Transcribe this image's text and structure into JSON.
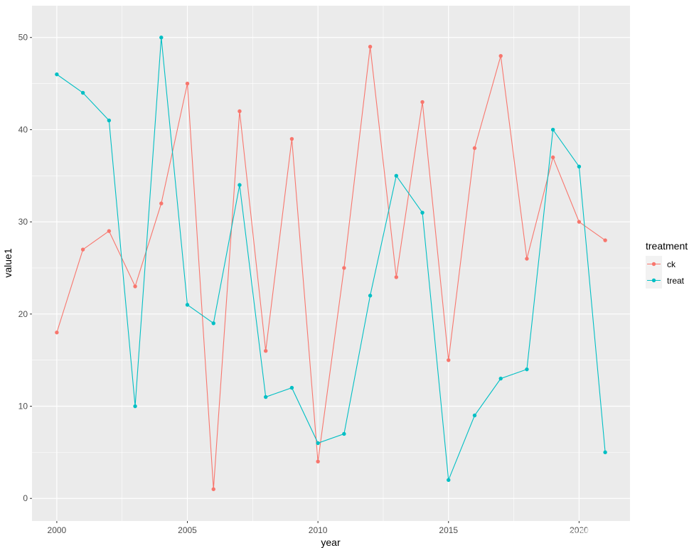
{
  "chart_data": {
    "type": "line",
    "xlabel": "year",
    "ylabel": "value1",
    "x": [
      2000,
      2001,
      2002,
      2003,
      2004,
      2005,
      2006,
      2007,
      2008,
      2009,
      2010,
      2011,
      2012,
      2013,
      2014,
      2015,
      2016,
      2017,
      2018,
      2019,
      2020,
      2021
    ],
    "xlim": [
      1999.05,
      2021.95
    ],
    "ylim": [
      -2.45,
      53.45
    ],
    "x_major_ticks": [
      2000,
      2005,
      2010,
      2015,
      2020
    ],
    "x_tick_labels": [
      "2000",
      "2005",
      "2010",
      "2015",
      "2020"
    ],
    "x_minor_ticks": [
      2002.5,
      2007.5,
      2012.5,
      2017.5
    ],
    "y_major_ticks": [
      0,
      10,
      20,
      30,
      40,
      50
    ],
    "y_tick_labels": [
      "0",
      "10",
      "20",
      "30",
      "40",
      "50"
    ],
    "y_minor_ticks": [
      5,
      15,
      25,
      35,
      45
    ],
    "grid": true,
    "legend": {
      "title": "treatment",
      "position": "right"
    },
    "series": [
      {
        "name": "ck",
        "color": "#F8766D",
        "values": [
          18,
          27,
          29,
          23,
          32,
          45,
          1,
          42,
          16,
          39,
          4,
          25,
          49,
          24,
          43,
          15,
          38,
          48,
          26,
          37,
          30,
          28
        ]
      },
      {
        "name": "treat",
        "color": "#00BFC4",
        "values": [
          46,
          44,
          41,
          10,
          50,
          21,
          19,
          34,
          11,
          12,
          6,
          7,
          22,
          35,
          31,
          2,
          9,
          13,
          14,
          40,
          36,
          5
        ]
      }
    ]
  },
  "watermark": "CSDN @酷三的R语言记录册"
}
